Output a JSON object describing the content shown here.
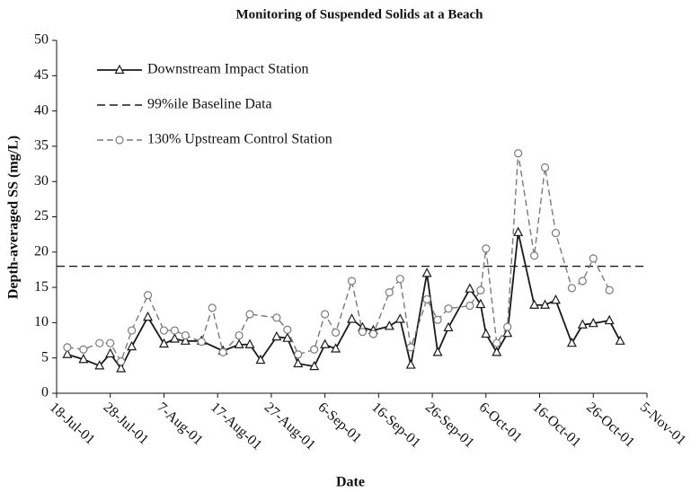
{
  "chart_data": {
    "type": "line",
    "title": "Monitoring of Suspended Solids at a Beach",
    "x_label": "Date",
    "y_label": "Depth-averaged SS (mg/L)",
    "xlim": [
      "2001-07-18",
      "2001-11-05"
    ],
    "xticks": [
      {
        "value": "2001-07-18",
        "label": "18-Jul-01"
      },
      {
        "value": "2001-07-28",
        "label": "28-Jul-01"
      },
      {
        "value": "2001-08-07",
        "label": "7-Aug-01"
      },
      {
        "value": "2001-08-17",
        "label": "17-Aug-01"
      },
      {
        "value": "2001-08-27",
        "label": "27-Aug-01"
      },
      {
        "value": "2001-09-06",
        "label": "6-Sep-01"
      },
      {
        "value": "2001-09-16",
        "label": "16-Sep-01"
      },
      {
        "value": "2001-09-26",
        "label": "26-Sep-01"
      },
      {
        "value": "2001-10-06",
        "label": "6-Oct-01"
      },
      {
        "value": "2001-10-16",
        "label": "16-Oct-01"
      },
      {
        "value": "2001-10-26",
        "label": "26-Oct-01"
      },
      {
        "value": "2001-11-05",
        "label": "5-Nov-01"
      }
    ],
    "ylim": [
      0,
      50
    ],
    "yticks": [
      0,
      5,
      10,
      15,
      20,
      25,
      30,
      35,
      40,
      45,
      50
    ],
    "legend": "top-left",
    "series": [
      {
        "name": "Downstream Impact Station",
        "color": "#1a1a1a",
        "dash": false,
        "marker": "triangle",
        "x": [
          "2001-07-20",
          "2001-07-23",
          "2001-07-26",
          "2001-07-28",
          "2001-07-30",
          "2001-08-01",
          "2001-08-04",
          "2001-08-07",
          "2001-08-09",
          "2001-08-11",
          "2001-08-14",
          "2001-08-18",
          "2001-08-21",
          "2001-08-23",
          "2001-08-25",
          "2001-08-28",
          "2001-08-30",
          "2001-09-01",
          "2001-09-04",
          "2001-09-06",
          "2001-09-08",
          "2001-09-11",
          "2001-09-13",
          "2001-09-15",
          "2001-09-18",
          "2001-09-20",
          "2001-09-22",
          "2001-09-25",
          "2001-09-27",
          "2001-09-29",
          "2001-10-03",
          "2001-10-05",
          "2001-10-06",
          "2001-10-08",
          "2001-10-10",
          "2001-10-12",
          "2001-10-15",
          "2001-10-17",
          "2001-10-19",
          "2001-10-22",
          "2001-10-24",
          "2001-10-26",
          "2001-10-29",
          "2001-10-31"
        ],
        "values": [
          5.5,
          4.8,
          3.9,
          5.6,
          3.5,
          6.6,
          10.8,
          7.0,
          7.7,
          7.4,
          7.4,
          6.0,
          6.9,
          6.9,
          4.7,
          8.0,
          7.8,
          4.2,
          3.8,
          6.9,
          6.3,
          10.5,
          9.3,
          8.9,
          9.5,
          10.5,
          4.0,
          17.0,
          5.8,
          9.3,
          14.8,
          12.6,
          8.4,
          5.8,
          8.5,
          22.8,
          12.5,
          12.5,
          13.2,
          7.1,
          9.7,
          9.9,
          10.3,
          7.4
        ]
      },
      {
        "name": "99%ile Baseline Data",
        "color": "#1a1a1a",
        "dash": true,
        "marker": "none",
        "x": [
          "2001-07-18",
          "2001-11-05"
        ],
        "values": [
          18,
          18
        ]
      },
      {
        "name": "130% Upstream Control Station",
        "color": "#7a7a7a",
        "dash": true,
        "marker": "circle",
        "x": [
          "2001-07-20",
          "2001-07-23",
          "2001-07-26",
          "2001-07-28",
          "2001-07-30",
          "2001-08-01",
          "2001-08-04",
          "2001-08-07",
          "2001-08-09",
          "2001-08-11",
          "2001-08-14",
          "2001-08-16",
          "2001-08-18",
          "2001-08-21",
          "2001-08-23",
          "2001-08-28",
          "2001-08-30",
          "2001-09-01",
          "2001-09-04",
          "2001-09-06",
          "2001-09-08",
          "2001-09-11",
          "2001-09-13",
          "2001-09-15",
          "2001-09-18",
          "2001-09-20",
          "2001-09-22",
          "2001-09-25",
          "2001-09-27",
          "2001-09-29",
          "2001-10-03",
          "2001-10-05",
          "2001-10-06",
          "2001-10-08",
          "2001-10-10",
          "2001-10-12",
          "2001-10-15",
          "2001-10-17",
          "2001-10-19",
          "2001-10-22",
          "2001-10-24",
          "2001-10-26",
          "2001-10-29"
        ],
        "values": [
          6.5,
          6.2,
          7.1,
          7.1,
          4.5,
          8.9,
          13.9,
          8.9,
          8.9,
          8.2,
          7.3,
          12.1,
          5.8,
          8.2,
          11.2,
          10.7,
          9.0,
          5.5,
          6.2,
          11.2,
          8.6,
          15.9,
          8.7,
          8.4,
          14.3,
          16.2,
          6.5,
          13.3,
          10.4,
          12.0,
          12.4,
          14.6,
          20.5,
          7.1,
          9.4,
          34.0,
          19.5,
          32.0,
          22.7,
          14.9,
          15.9,
          19.1,
          14.6
        ]
      }
    ]
  }
}
